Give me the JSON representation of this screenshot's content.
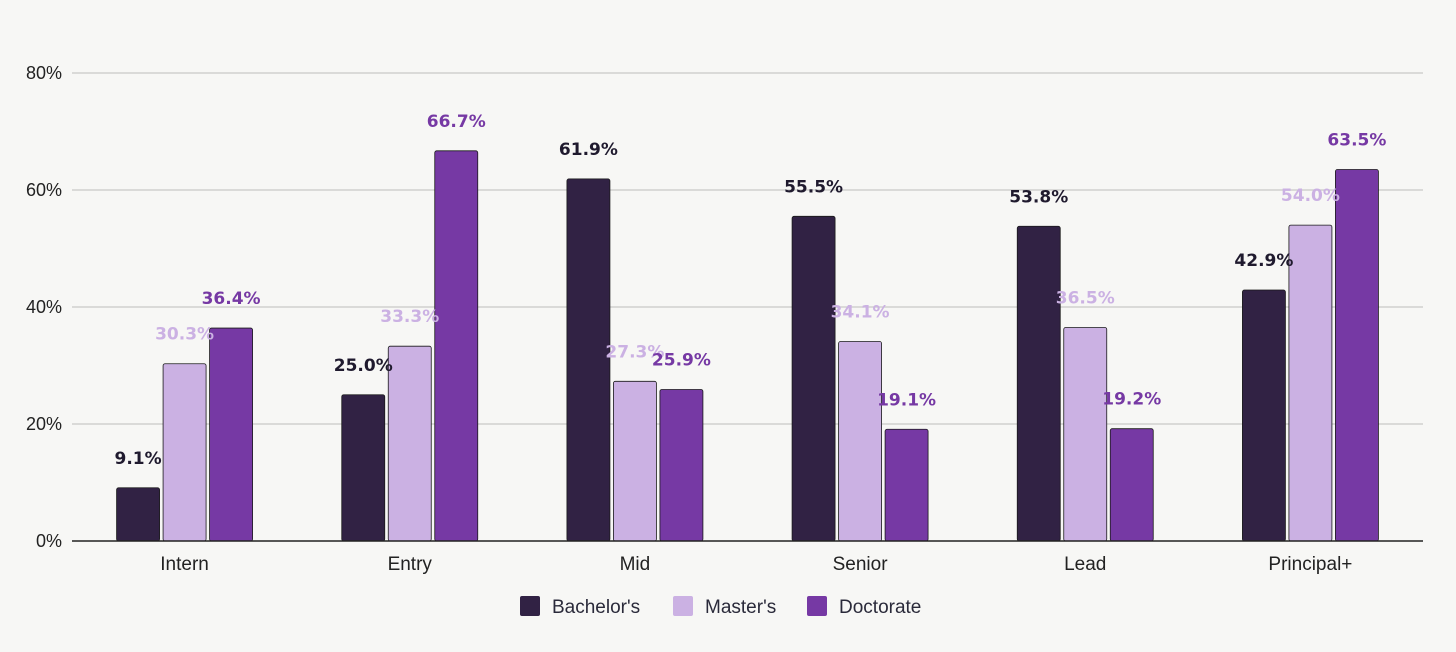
{
  "chart_data": {
    "type": "bar",
    "title": "",
    "xlabel": "",
    "ylabel": "",
    "categories": [
      "Intern",
      "Entry",
      "Mid",
      "Senior",
      "Lead",
      "Principal+"
    ],
    "series": [
      {
        "name": "Bachelor's",
        "color": "#312244",
        "values": [
          9.1,
          25.0,
          61.9,
          55.5,
          53.8,
          42.9
        ],
        "labels": [
          "9.1%",
          "25.0%",
          "61.9%",
          "55.5%",
          "53.8%",
          "42.9%"
        ],
        "label_color": "#1f1a2e"
      },
      {
        "name": "Master's",
        "color": "#cbb1e3",
        "values": [
          30.3,
          33.3,
          27.3,
          34.1,
          36.5,
          54.0
        ],
        "labels": [
          "30.3%",
          "33.3%",
          "27.3%",
          "34.1%",
          "36.5%",
          "54.0%"
        ],
        "label_color": "#cbb1e3"
      },
      {
        "name": "Doctorate",
        "color": "#7639a4",
        "values": [
          36.4,
          66.7,
          25.9,
          19.1,
          19.2,
          63.5
        ],
        "labels": [
          "36.4%",
          "66.7%",
          "25.9%",
          "19.1%",
          "19.2%",
          "63.5%"
        ],
        "label_color": "#7639a4"
      }
    ],
    "y_ticks": [
      "0%",
      "20%",
      "40%",
      "60%",
      "80%"
    ],
    "y_tick_values": [
      0,
      20,
      40,
      60,
      80
    ],
    "ylim": [
      0,
      80
    ],
    "grid": true,
    "legend_position": "bottom-center"
  }
}
